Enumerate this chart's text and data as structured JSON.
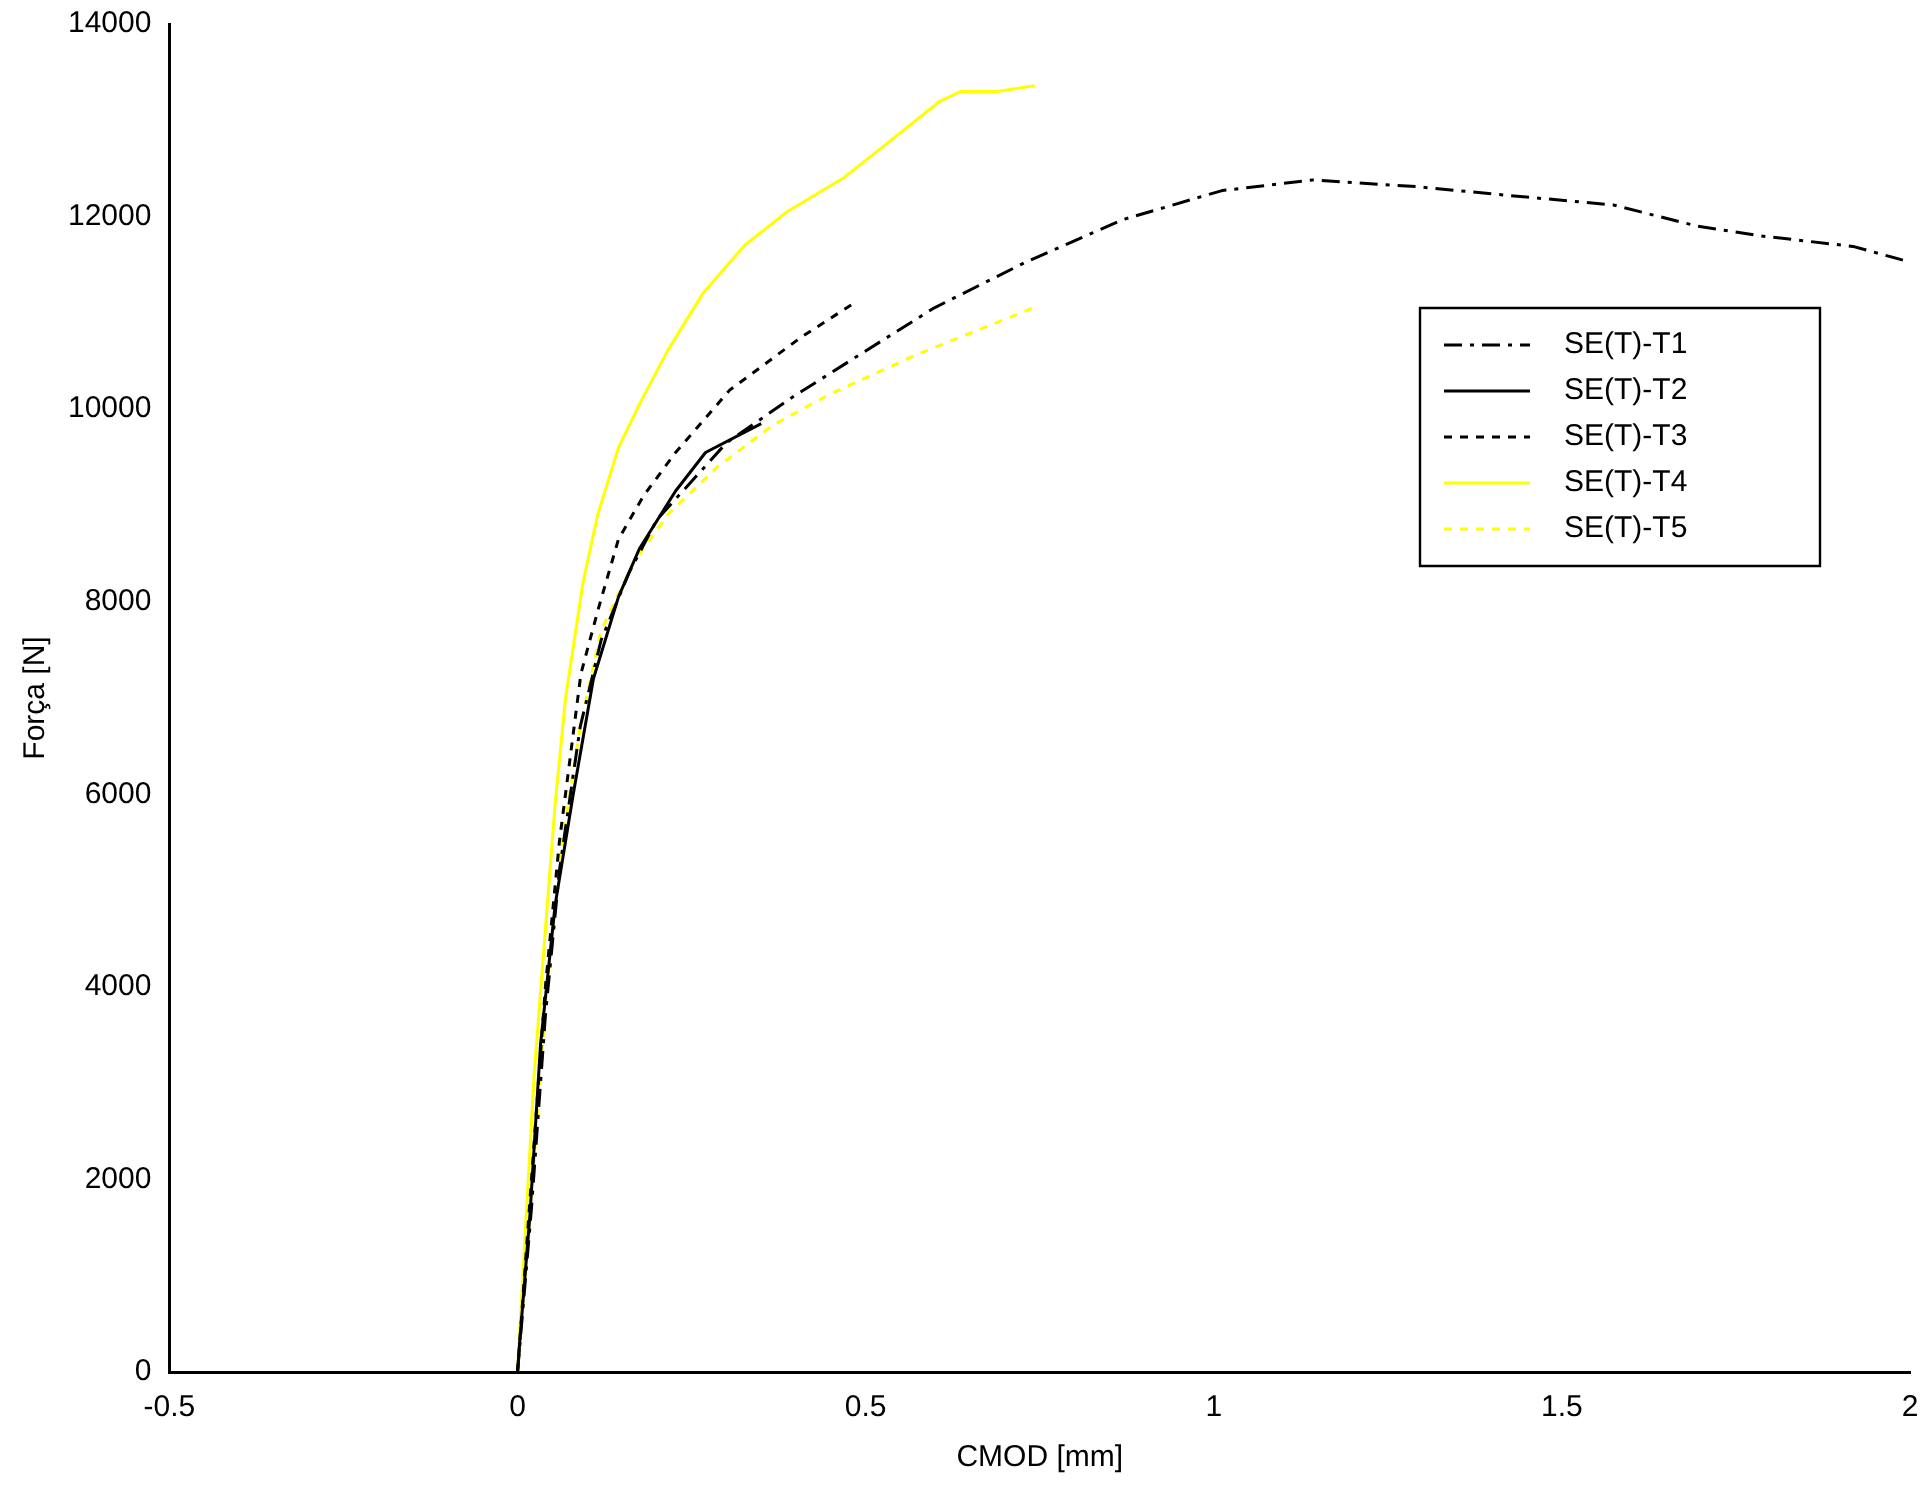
{
  "chart_data": {
    "type": "line",
    "xlabel": "CMOD [mm]",
    "ylabel": "Força [N]",
    "xlim": [
      -0.5,
      2
    ],
    "xticks": [
      -0.5,
      0,
      0.5,
      1,
      1.5,
      2
    ],
    "ylim": [
      0,
      14000
    ],
    "yticks": [
      0,
      2000,
      4000,
      6000,
      8000,
      10000,
      12000,
      14000
    ],
    "grid": false,
    "legend": "right",
    "marker": "none",
    "series": [
      {
        "name": "SE(T)-T1",
        "color": "#000000",
        "line_style": "dashed",
        "x": [
          0,
          0.02,
          0.04,
          0.06,
          0.09,
          0.12,
          0.16,
          0.2,
          0.3,
          0.396,
          0.477,
          0.598,
          0.728,
          0.87,
          1.012,
          1.142,
          1.293,
          1.423,
          1.574,
          1.695,
          1.785,
          1.918,
          1.994
        ],
        "values": [
          0,
          1700,
          3700,
          5200,
          6700,
          7600,
          8300,
          8850,
          9650,
          10130,
          10500,
          11050,
          11520,
          11970,
          12270,
          12380,
          12310,
          12220,
          12120,
          11900,
          11800,
          11690,
          11540
        ]
      },
      {
        "name": "SE(T)-T2",
        "color": "#000000",
        "line_style": "solid",
        "x": [
          0,
          0.003,
          0.018,
          0.033,
          0.054,
          0.08,
          0.109,
          0.145,
          0.175,
          0.227,
          0.27,
          0.35
        ],
        "values": [
          0,
          300,
          1650,
          3400,
          4850,
          6000,
          7200,
          8050,
          8550,
          9150,
          9550,
          9850
        ]
      },
      {
        "name": "SE(T)-T3",
        "color": "#000000",
        "line_style": "dotted",
        "x": [
          0,
          0.02,
          0.04,
          0.06,
          0.091,
          0.115,
          0.145,
          0.181,
          0.227,
          0.305,
          0.408,
          0.483
        ],
        "values": [
          0,
          2000,
          4000,
          5500,
          7250,
          7900,
          8650,
          9100,
          9550,
          10200,
          10750,
          11100
        ]
      },
      {
        "name": "SE(T)-T4",
        "color": "#ffff00",
        "line_style": "solid",
        "x": [
          0,
          0.003,
          0.024,
          0.039,
          0.054,
          0.069,
          0.094,
          0.115,
          0.145,
          0.175,
          0.215,
          0.266,
          0.326,
          0.387,
          0.468,
          0.529,
          0.607,
          0.637,
          0.689,
          0.743
        ],
        "values": [
          0,
          400,
          3100,
          4500,
          5900,
          7000,
          8200,
          8900,
          9600,
          10050,
          10600,
          11200,
          11700,
          12050,
          12400,
          12750,
          13200,
          13300,
          13300,
          13360
        ]
      },
      {
        "name": "SE(T)-T5",
        "color": "#ffff00",
        "line_style": "dotted",
        "x": [
          0,
          0.02,
          0.04,
          0.06,
          0.09,
          0.12,
          0.166,
          0.215,
          0.287,
          0.366,
          0.447,
          0.568,
          0.74
        ],
        "values": [
          0,
          1800,
          3800,
          5300,
          6700,
          7700,
          8400,
          8900,
          9400,
          9830,
          10150,
          10550,
          11050
        ]
      }
    ]
  }
}
